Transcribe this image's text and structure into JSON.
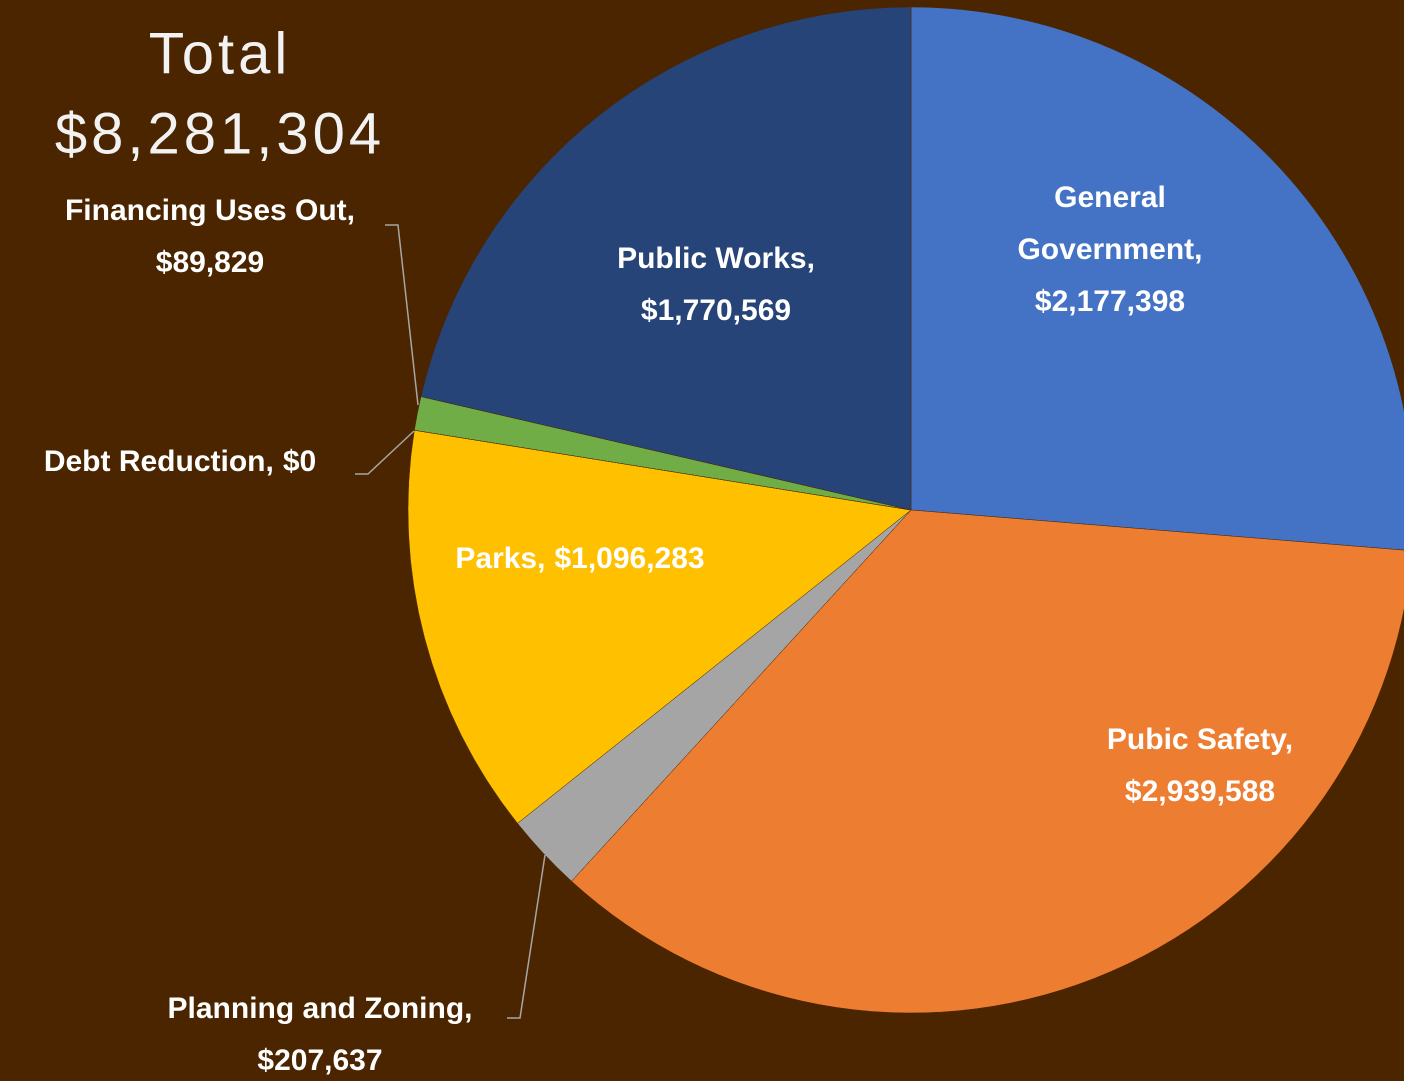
{
  "chart_data": {
    "type": "pie",
    "title": "Total",
    "subtitle": "$8,281,304",
    "categories": [
      "General Government,",
      "Pubic Safety,",
      "Planning and Zoning,",
      "Parks,",
      "Debt Reduction,",
      "Financing Uses Out,",
      "Public Works,"
    ],
    "values": [
      2177398,
      2939588,
      207637,
      1096283,
      0,
      89829,
      1770569
    ],
    "value_labels": [
      "$2,177,398",
      "$2,939,588",
      "$207,637",
      "$1,096,283",
      "$0",
      "$89,829",
      "$1,770,569"
    ],
    "colors": [
      "#4472c4",
      "#ed7d31",
      "#a5a5a5",
      "#ffc000",
      "#5b9bd5",
      "#70ad47",
      "#264478"
    ]
  }
}
